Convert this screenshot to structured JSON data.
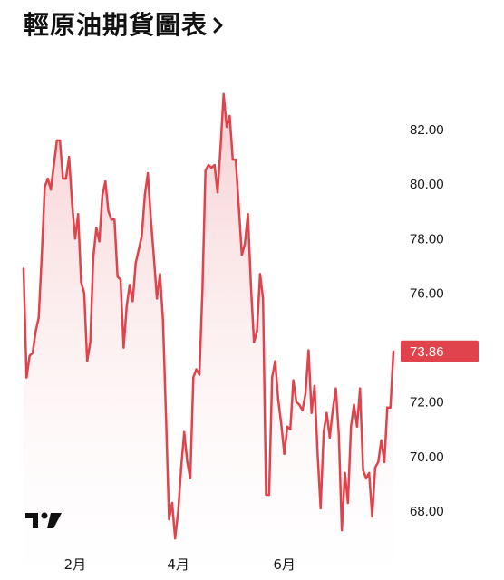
{
  "header": {
    "title": "輕原油期貨圖表",
    "chevron_icon": "chevron-right-icon"
  },
  "logo": {
    "icon": "tradingview-logo-icon"
  },
  "colors": {
    "line": "#e0434b",
    "area_top": "#f6c9cc",
    "area_bottom": "#ffffff",
    "badge": "#e0434b",
    "text": "#1b1b1b"
  },
  "chart_data": {
    "type": "area",
    "title": "輕原油期貨圖表",
    "xlabel": "",
    "ylabel": "",
    "ylim": [
      67.5,
      84.5
    ],
    "grid": false,
    "y_axis_position": "right",
    "y_ticks": [
      "82.00",
      "80.00",
      "78.00",
      "76.00",
      "74.00",
      "72.00",
      "70.00",
      "68.00"
    ],
    "x_ticks": [
      {
        "label": "2月",
        "index": 17
      },
      {
        "label": "4月",
        "index": 51
      },
      {
        "label": "6月",
        "index": 86
      }
    ],
    "last_value_label": "73.86",
    "series": [
      {
        "values": [
          76.9,
          72.9,
          73.7,
          73.8,
          74.6,
          75.1,
          77.4,
          79.9,
          80.2,
          79.8,
          80.7,
          81.6,
          81.6,
          80.2,
          80.2,
          81.0,
          79.3,
          78.0,
          78.9,
          76.4,
          76.0,
          73.5,
          74.2,
          77.3,
          78.4,
          77.9,
          79.6,
          80.1,
          79.0,
          78.7,
          78.7,
          76.6,
          76.5,
          74.0,
          75.5,
          76.3,
          75.7,
          77.1,
          77.6,
          78.1,
          79.6,
          80.4,
          78.7,
          77.3,
          75.8,
          76.7,
          75.0,
          71.4,
          67.7,
          68.3,
          67.0,
          68.0,
          69.6,
          70.9,
          69.8,
          69.2,
          72.9,
          73.2,
          73.0,
          76.1,
          80.5,
          80.7,
          80.6,
          80.7,
          79.7,
          81.4,
          83.3,
          82.1,
          82.5,
          80.9,
          80.9,
          79.2,
          77.4,
          77.8,
          78.9,
          76.3,
          74.2,
          74.6,
          76.7,
          75.8,
          68.6,
          68.6,
          72.9,
          73.5,
          72.1,
          71.2,
          70.1,
          71.1,
          71.0,
          72.8,
          72.0,
          71.9,
          71.7,
          72.3,
          73.9,
          71.6,
          72.6,
          70.1,
          68.1,
          70.9,
          71.6,
          70.7,
          71.7,
          72.5,
          70.8,
          67.3,
          69.4,
          68.3,
          71.1,
          71.9,
          71.1,
          72.5,
          69.5,
          69.2,
          69.4,
          67.8,
          69.6,
          69.8,
          70.6,
          69.8,
          71.8,
          71.8,
          73.86
        ]
      }
    ]
  }
}
